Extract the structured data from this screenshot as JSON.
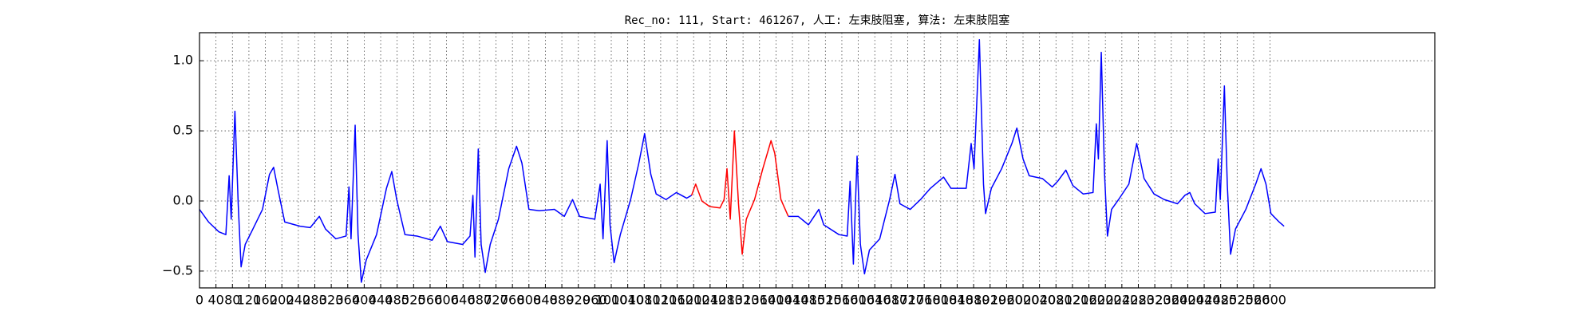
{
  "chart_data": {
    "type": "line",
    "title": "Rec_no: 111, Start: 461267, 人工: 左束肢阻塞, 算法: 左束肢阻塞",
    "xlim": [
      0,
      3000
    ],
    "ylim": [
      -0.62,
      1.2
    ],
    "xticks": [
      0,
      40,
      80,
      120,
      160,
      200,
      240,
      280,
      320,
      360,
      400,
      440,
      480,
      520,
      560,
      600,
      640,
      680,
      720,
      760,
      800,
      840,
      880,
      920,
      960,
      1000,
      1040,
      1080,
      1120,
      1160,
      1200,
      1240,
      1280,
      1320,
      1360,
      1400,
      1440,
      1480,
      1520,
      1560,
      1600,
      1640,
      1680,
      1720,
      1760,
      1800,
      1840,
      1880,
      1920,
      1960,
      2000,
      2040,
      2080,
      2120,
      2160,
      2200,
      2240,
      2280,
      2320,
      2360,
      2400,
      2440,
      2480,
      2520,
      2560,
      2600
    ],
    "yticks": [
      {
        "value": -0.5,
        "label": "−0.5"
      },
      {
        "value": 0,
        "label": "0.0"
      },
      0.5,
      {
        "value": 1,
        "label": "1.0"
      }
    ],
    "grid": true,
    "series": [
      {
        "color": "#0000ff",
        "x": [
          0,
          22,
          47,
          64,
          72,
          77,
          86,
          94,
          101,
          111,
          128,
          153,
          170,
          180,
          190,
          207,
          244,
          269,
          291,
          306,
          331,
          356,
          363,
          368,
          378,
          385,
          393,
          405,
          430,
          454,
          467,
          479,
          499,
          528,
          565,
          585,
          602,
          639,
          657,
          664,
          669,
          677,
          684,
          694,
          706,
          726,
          751,
          770,
          783,
          800,
          825,
          862,
          886,
          906,
          923,
          960,
          973,
          980,
          990,
          997,
          1007,
          1022,
          1047,
          1067,
          1081,
          1096,
          1109,
          1133,
          1158,
          1183,
          1195
        ],
        "values": [
          -0.06,
          -0.15,
          -0.22,
          -0.24,
          0.18,
          -0.13,
          0.64,
          -0.02,
          -0.47,
          -0.31,
          -0.21,
          -0.06,
          0.19,
          0.24,
          0.09,
          -0.15,
          -0.18,
          -0.19,
          -0.11,
          -0.2,
          -0.27,
          -0.25,
          0.1,
          -0.27,
          0.54,
          -0.24,
          -0.58,
          -0.42,
          -0.24,
          0.09,
          0.21,
          0.01,
          -0.24,
          -0.25,
          -0.28,
          -0.18,
          -0.29,
          -0.31,
          -0.25,
          0.04,
          -0.4,
          0.37,
          -0.31,
          -0.51,
          -0.31,
          -0.13,
          0.23,
          0.39,
          0.27,
          -0.06,
          -0.07,
          -0.06,
          -0.11,
          0.01,
          -0.11,
          -0.13,
          0.12,
          -0.27,
          0.43,
          -0.17,
          -0.44,
          -0.24,
          0.01,
          0.27,
          0.48,
          0.19,
          0.05,
          0.01,
          0.06,
          0.02,
          0.04
        ]
      },
      {
        "color": "#ff0000",
        "x": [
          1195,
          1205,
          1220,
          1239,
          1264,
          1274,
          1281,
          1289,
          1299,
          1309,
          1318,
          1328,
          1348,
          1368,
          1388,
          1397,
          1412,
          1430
        ],
        "values": [
          0.04,
          0.12,
          0,
          -0.04,
          -0.05,
          0.01,
          0.23,
          -0.13,
          0.5,
          -0.02,
          -0.38,
          -0.13,
          0.01,
          0.23,
          0.43,
          0.34,
          0.01,
          -0.11
        ]
      },
      {
        "color": "#0000ff",
        "x": [
          1430,
          1454,
          1479,
          1504,
          1516,
          1553,
          1573,
          1580,
          1588,
          1597,
          1605,
          1615,
          1627,
          1652,
          1676,
          1689,
          1701,
          1726,
          1751,
          1775,
          1807,
          1825,
          1862,
          1874,
          1881,
          1894,
          1904,
          1909,
          1923,
          1948,
          1973,
          1985,
          2000,
          2015,
          2047,
          2071,
          2084,
          2104,
          2121,
          2146,
          2170,
          2178,
          2183,
          2190,
          2198,
          2205,
          2215,
          2232,
          2257,
          2276,
          2294,
          2318,
          2343,
          2375,
          2393,
          2405,
          2417,
          2442,
          2467,
          2474,
          2479,
          2489,
          2496,
          2504,
          2516,
          2541,
          2565,
          2578,
          2590,
          2602,
          2622,
          2634
        ],
        "values": [
          -0.11,
          -0.11,
          -0.17,
          -0.06,
          -0.17,
          -0.24,
          -0.25,
          0.14,
          -0.45,
          0.32,
          -0.31,
          -0.52,
          -0.35,
          -0.27,
          0.01,
          0.19,
          -0.02,
          -0.06,
          0.01,
          0.09,
          0.17,
          0.09,
          0.09,
          0.41,
          0.23,
          1.15,
          0.12,
          -0.09,
          0.09,
          0.23,
          0.41,
          0.52,
          0.3,
          0.18,
          0.16,
          0.1,
          0.14,
          0.22,
          0.11,
          0.05,
          0.06,
          0.55,
          0.3,
          1.06,
          0.19,
          -0.25,
          -0.06,
          0.01,
          0.12,
          0.41,
          0.16,
          0.05,
          0.01,
          -0.02,
          0.04,
          0.06,
          -0.02,
          -0.09,
          -0.08,
          0.3,
          0.01,
          0.82,
          0.12,
          -0.38,
          -0.2,
          -0.06,
          0.12,
          0.23,
          0.12,
          -0.09,
          -0.15,
          -0.18
        ]
      }
    ]
  }
}
